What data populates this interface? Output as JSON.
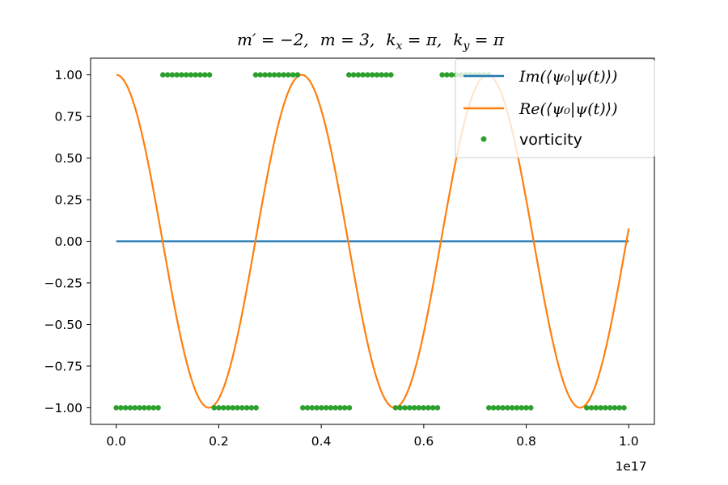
{
  "chart_data": {
    "type": "line",
    "title": "m′ = −2,  m = 3,  k_x = π,  k_y = π",
    "title_parts": {
      "m_prime": "m′ = −2,",
      "m": "m = 3,",
      "kx_k": "k",
      "kx_sub": "x",
      "kx_val": " = π,",
      "ky_k": "k",
      "ky_sub": "y",
      "ky_val": " = π"
    },
    "x_offset_label": "1e17",
    "xlim": [
      -0.05,
      1.05
    ],
    "ylim": [
      -1.1,
      1.1
    ],
    "x_ticks": [
      0.0,
      0.2,
      0.4,
      0.6,
      0.8,
      1.0
    ],
    "x_tick_labels": [
      "0.0",
      "0.2",
      "0.4",
      "0.6",
      "0.8",
      "1.0"
    ],
    "y_ticks": [
      1.0,
      0.75,
      0.5,
      0.25,
      0.0,
      -0.25,
      -0.5,
      -0.75,
      -1.0
    ],
    "y_tick_labels": [
      "1.00",
      "0.75",
      "0.50",
      "0.25",
      "0.00",
      "−0.25",
      "−0.50",
      "−0.75",
      "−1.00"
    ],
    "grid": false,
    "legend_position": "top-right",
    "series": [
      {
        "name": "Im(⟨ψ0|ψ(t)⟩)",
        "legend_label": "Im(⟨ψ₀|ψ(t)⟩)",
        "color": "#1f77b4",
        "kind": "line",
        "x_range": [
          0.0,
          1.0
        ],
        "y_constant": 0.0
      },
      {
        "name": "Re(⟨ψ0|ψ(t)⟩)",
        "legend_label": "Re(⟨ψ₀|ψ(t)⟩)",
        "color": "#ff7f0e",
        "kind": "line",
        "x_range": [
          0.0,
          1.0
        ],
        "function": "cos",
        "period": 0.362,
        "amplitude": 1.0
      },
      {
        "name": "vorticity",
        "legend_label": "vorticity",
        "color": "#2ca02c",
        "kind": "scatter",
        "spacing": 0.0091,
        "groups": [
          {
            "y": -1.0,
            "x_start": 0.0,
            "count": 10
          },
          {
            "y": 1.0,
            "x_start": 0.091,
            "count": 11
          },
          {
            "y": -1.0,
            "x_start": 0.191,
            "count": 10
          },
          {
            "y": 1.0,
            "x_start": 0.272,
            "count": 10
          },
          {
            "y": -1.0,
            "x_start": 0.364,
            "count": 11
          },
          {
            "y": 1.0,
            "x_start": 0.454,
            "count": 10
          },
          {
            "y": -1.0,
            "x_start": 0.545,
            "count": 10
          },
          {
            "y": 1.0,
            "x_start": 0.636,
            "count": 11
          },
          {
            "y": -1.0,
            "x_start": 0.727,
            "count": 10
          },
          {
            "y": -1.0,
            "x_start": 0.918,
            "count": 9
          }
        ]
      }
    ]
  }
}
